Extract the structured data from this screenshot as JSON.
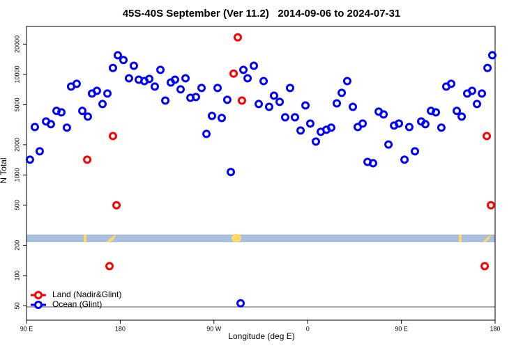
{
  "chart_data": {
    "type": "scatter",
    "title": "45S-40S September (Ver 11.2)   2014-09-06 to 2024-07-31",
    "x_label": "Longitude (deg E)",
    "y_label": "N Total",
    "xlim": [
      90,
      540
    ],
    "xticks": [
      {
        "value": 90,
        "label": "90 E"
      },
      180,
      {
        "value": 270,
        "label": "90 W"
      },
      {
        "value": 360,
        "label": "0"
      },
      {
        "value": 450,
        "label": "90 E"
      },
      {
        "value": 540,
        "label": "180"
      }
    ],
    "ylim": [
      36,
      30000
    ],
    "ylog": true,
    "yticks": [
      50,
      100,
      200,
      500,
      1000,
      2000,
      5000,
      10000,
      20000
    ],
    "legend": "bottom left",
    "series": [
      {
        "name": "Land (Nadir&Glint)",
        "color": "#ff0000",
        "x": [
          148.3,
          173.0,
          176.4,
          169.7,
          288.9,
          292.9,
          296.9,
          530.0,
          532.0,
          536.0
        ],
        "values": [
          1420,
          2440,
          500,
          124,
          10200,
          23400,
          5500,
          124,
          2440,
          500
        ]
      },
      {
        "name": "Ocean (Glint)",
        "color": "#0000ff",
        "x": [
          93.3,
          98.0,
          102.7,
          108.8,
          113.4,
          118.8,
          123.5,
          128.8,
          132.8,
          138.2,
          143.6,
          148.9,
          152.9,
          157.6,
          163.0,
          167.7,
          173.0,
          177.7,
          183.1,
          188.4,
          193.1,
          197.8,
          203.2,
          207.9,
          213.2,
          218.6,
          223.3,
          228.6,
          232.6,
          238.0,
          242.7,
          247.4,
          252.7,
          258.1,
          262.8,
          268.1,
          273.5,
          277.5,
          282.8,
          286.2,
          295.6,
          298.3,
          302.3,
          308.3,
          313.0,
          317.7,
          323.0,
          327.7,
          333.1,
          338.4,
          343.1,
          347.8,
          353.2,
          357.9,
          362.5,
          367.9,
          372.6,
          378.0,
          382.6,
          388.0,
          392.7,
          398.0,
          403.4,
          408.1,
          412.8,
          417.5,
          422.8,
          428.2,
          432.9,
          437.6,
          443.0,
          447.6,
          453.0,
          457.6,
          463.0,
          469.0,
          473.0,
          478.4,
          483.1,
          488.4,
          493.1,
          497.8,
          503.2,
          507.9,
          513.2,
          517.9,
          522.6,
          527.3,
          532.7,
          537.3
        ],
        "values": [
          1420,
          3000,
          1720,
          3410,
          3200,
          4340,
          4200,
          2960,
          7570,
          8070,
          4340,
          3810,
          6460,
          6870,
          5080,
          6460,
          11600,
          15500,
          13900,
          9160,
          12200,
          8870,
          8590,
          9020,
          7570,
          11100,
          5500,
          8320,
          8870,
          7100,
          9160,
          5860,
          5960,
          7330,
          2560,
          3870,
          7330,
          3690,
          5590,
          1070,
          53,
          11100,
          9160,
          12200,
          5080,
          8590,
          4760,
          6150,
          5330,
          3750,
          7330,
          3750,
          2770,
          4920,
          3250,
          2150,
          2690,
          2820,
          2960,
          5160,
          6560,
          8590,
          4760,
          3000,
          3250,
          1350,
          1310,
          4270,
          4000,
          2010,
          3100,
          3250,
          1420,
          3000,
          1720,
          3410,
          3200,
          4340,
          4200,
          2960,
          7570,
          8070,
          4340,
          3810,
          6460,
          6870,
          5080,
          6460,
          11600,
          15500
        ]
      }
    ]
  }
}
